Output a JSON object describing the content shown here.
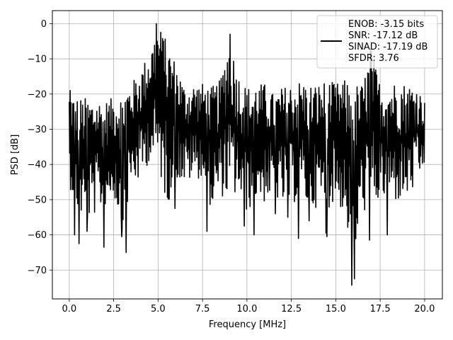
{
  "chart_data": {
    "type": "line",
    "title": "",
    "xlabel": "Frequency [MHz]",
    "ylabel": "PSD [dB]",
    "xlim": [
      -0.95,
      21.0
    ],
    "ylim": [
      -78.2,
      3.7
    ],
    "xticks": [
      0.0,
      2.5,
      5.0,
      7.5,
      10.0,
      12.5,
      15.0,
      17.5,
      20.0
    ],
    "xtick_labels": [
      "0.0",
      "2.5",
      "5.0",
      "7.5",
      "10.0",
      "12.5",
      "15.0",
      "17.5",
      "20.0"
    ],
    "yticks": [
      0,
      -10,
      -20,
      -30,
      -40,
      -50,
      -60,
      -70
    ],
    "ytick_labels": [
      "0",
      "−10",
      "−20",
      "−30",
      "−40",
      "−50",
      "−60",
      "−70"
    ],
    "grid": true,
    "legend_position": "upper right",
    "series": [
      {
        "legend_lines": [
          "ENOB: -3.15 bits",
          "SNR: -17.12 dB",
          "SINAD: -17.19 dB",
          "SFDR: 3.76"
        ],
        "color": "#000000",
        "x_range": [
          0.0,
          20.0
        ],
        "points_count": 801,
        "envelope_x": [
          0.0,
          0.5,
          1.0,
          1.5,
          2.0,
          2.5,
          3.0,
          3.5,
          4.0,
          4.5,
          5.0,
          5.5,
          6.0,
          6.5,
          7.0,
          7.5,
          8.0,
          8.5,
          9.0,
          9.5,
          10.0,
          10.5,
          11.0,
          11.5,
          12.0,
          12.5,
          13.0,
          13.5,
          14.0,
          14.5,
          15.0,
          15.5,
          16.0,
          16.5,
          17.0,
          17.5,
          18.0,
          18.5,
          19.0,
          19.5,
          20.0
        ],
        "envelope_max": [
          -19,
          -21,
          -21,
          -21,
          -22,
          -21,
          -18,
          -17,
          -13,
          -8,
          0,
          -5,
          -11,
          -18,
          -17,
          -17,
          -18,
          -16,
          -3,
          -14,
          -18,
          -17,
          -17,
          -20,
          -18,
          -17,
          -16,
          -17,
          -17,
          -16,
          -17,
          -16,
          -17,
          -17,
          -7,
          -17,
          -17,
          -16,
          -17,
          -17,
          -22
        ],
        "envelope_min": [
          -52,
          -60,
          -63,
          -60,
          -58,
          -55,
          -65,
          -52,
          -51,
          -45,
          -47,
          -58,
          -50,
          -52,
          -50,
          -50,
          -59,
          -55,
          -56,
          -55,
          -60,
          -56,
          -57,
          -55,
          -58,
          -58,
          -55,
          -59,
          -58,
          -59,
          -56,
          -61,
          -74,
          -60,
          -58,
          -57,
          -56,
          -57,
          -56,
          -53,
          -47
        ],
        "typical_center": -33
      }
    ],
    "dips": [
      {
        "x": 0.3,
        "y": -60
      },
      {
        "x": 0.55,
        "y": -62.5
      },
      {
        "x": 1.0,
        "y": -59
      },
      {
        "x": 1.95,
        "y": -63.5
      },
      {
        "x": 2.95,
        "y": -60.5
      },
      {
        "x": 3.2,
        "y": -65
      },
      {
        "x": 5.95,
        "y": -52.5
      },
      {
        "x": 7.75,
        "y": -59
      },
      {
        "x": 9.85,
        "y": -57.5
      },
      {
        "x": 10.4,
        "y": -60
      },
      {
        "x": 11.6,
        "y": -54
      },
      {
        "x": 12.3,
        "y": -55
      },
      {
        "x": 12.9,
        "y": -61
      },
      {
        "x": 13.5,
        "y": -56
      },
      {
        "x": 14.45,
        "y": -59.5
      },
      {
        "x": 14.5,
        "y": -60.5
      },
      {
        "x": 15.9,
        "y": -74.3
      },
      {
        "x": 16.05,
        "y": -72.5
      },
      {
        "x": 17.9,
        "y": -60
      },
      {
        "x": 16.9,
        "y": -61.5
      }
    ],
    "peaks": [
      {
        "x": 4.9,
        "y": 0
      },
      {
        "x": 5.3,
        "y": -5
      },
      {
        "x": 9.05,
        "y": -3
      },
      {
        "x": 16.95,
        "y": -7
      },
      {
        "x": 0.05,
        "y": -19
      }
    ]
  }
}
